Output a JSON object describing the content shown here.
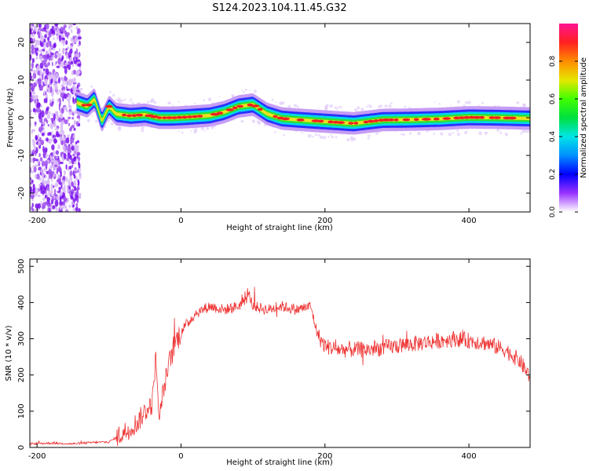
{
  "figure_title": "S124.2023.104.11.45.G32",
  "chart_data": [
    {
      "type": "heatmap",
      "xlabel": "Height of straight line (km)",
      "ylabel": "Frequency (Hz)",
      "xlim": [
        -210,
        485
      ],
      "ylim": [
        -25,
        25
      ],
      "xticks": [
        -200,
        0,
        200,
        400
      ],
      "yticks": [
        -20,
        -10,
        0,
        10,
        20
      ],
      "colorbar": {
        "label": "Normalized spectral amplitude",
        "range": [
          0,
          1
        ],
        "ticks": [
          0.0,
          0.2,
          0.4,
          0.6,
          0.8
        ]
      },
      "ridge": {
        "x": [
          -145,
          -130,
          -120,
          -110,
          -100,
          -90,
          -70,
          -50,
          -30,
          -10,
          10,
          40,
          60,
          80,
          100,
          120,
          140,
          160,
          200,
          240,
          280,
          320,
          360,
          400,
          440,
          485
        ],
        "y": [
          4,
          3,
          5,
          -1,
          3,
          1,
          0.5,
          0.8,
          0,
          0,
          0.2,
          0.6,
          1.5,
          3,
          3.5,
          1,
          -0.2,
          -0.5,
          -1,
          -1.5,
          -0.6,
          -0.5,
          -0.3,
          0.1,
          0,
          -0.2
        ]
      },
      "noise_region_x": [
        -210,
        -140
      ]
    },
    {
      "type": "line",
      "xlabel": "Height of straight line (km)",
      "ylabel": "SNR (10 * v/v)",
      "xlim": [
        -210,
        485
      ],
      "ylim": [
        0,
        520
      ],
      "xticks": [
        -200,
        0,
        200,
        400
      ],
      "yticks": [
        0,
        100,
        200,
        300,
        400,
        500
      ],
      "color": "#ee3333",
      "series": [
        {
          "x": [
            -210,
            -180,
            -150,
            -120,
            -100,
            -80,
            -60,
            -50,
            -40,
            -35,
            -30,
            -25,
            -20,
            -10,
            0,
            20,
            40,
            60,
            80,
            95,
            100,
            120,
            140,
            160,
            180,
            190,
            200,
            220,
            260,
            300,
            340,
            380,
            420,
            450,
            470,
            485
          ],
          "y": [
            10,
            12,
            10,
            14,
            15,
            40,
            70,
            100,
            120,
            250,
            80,
            150,
            200,
            280,
            320,
            370,
            390,
            380,
            390,
            420,
            390,
            380,
            390,
            380,
            390,
            310,
            280,
            270,
            270,
            280,
            290,
            300,
            290,
            270,
            240,
            195
          ]
        }
      ]
    }
  ]
}
